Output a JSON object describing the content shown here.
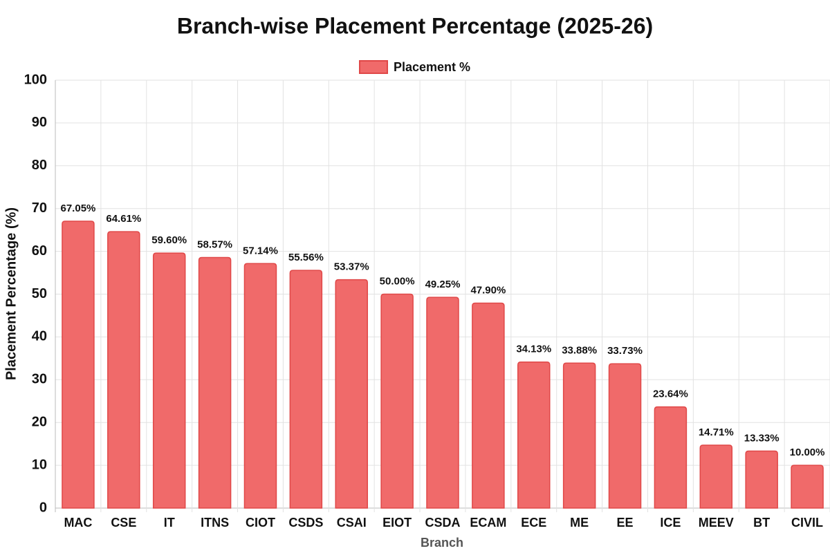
{
  "chart_data": {
    "type": "bar",
    "title": "Branch-wise Placement Percentage (2025-26)",
    "x_label": "Branch",
    "y_label": "Placement Percentage (%)",
    "categories": [
      "MAC",
      "CSE",
      "IT",
      "ITNS",
      "CIOT",
      "CSDS",
      "CSAI",
      "EIOT",
      "CSDA",
      "ECAM",
      "ECE",
      "ME",
      "EE",
      "ICE",
      "MEEV",
      "BT",
      "CIVIL"
    ],
    "series": [
      {
        "name": "Placement %",
        "color": "#f06a6a",
        "border_color": "#e04848",
        "values": [
          67.05,
          64.61,
          59.6,
          58.57,
          57.14,
          55.56,
          53.37,
          50.0,
          49.25,
          47.9,
          34.13,
          33.88,
          33.73,
          23.64,
          14.71,
          13.33,
          10.0
        ],
        "value_labels": [
          "67.05%",
          "64.61%",
          "59.60%",
          "58.57%",
          "57.14%",
          "55.56%",
          "53.37%",
          "50.00%",
          "49.25%",
          "47.90%",
          "34.13%",
          "33.88%",
          "33.73%",
          "23.64%",
          "14.71%",
          "13.33%",
          "10.00%"
        ]
      }
    ],
    "ylim": [
      0,
      100
    ],
    "yticks": [
      0,
      10,
      20,
      30,
      40,
      50,
      60,
      70,
      80,
      90,
      100
    ],
    "grid": true,
    "legend": "top"
  }
}
